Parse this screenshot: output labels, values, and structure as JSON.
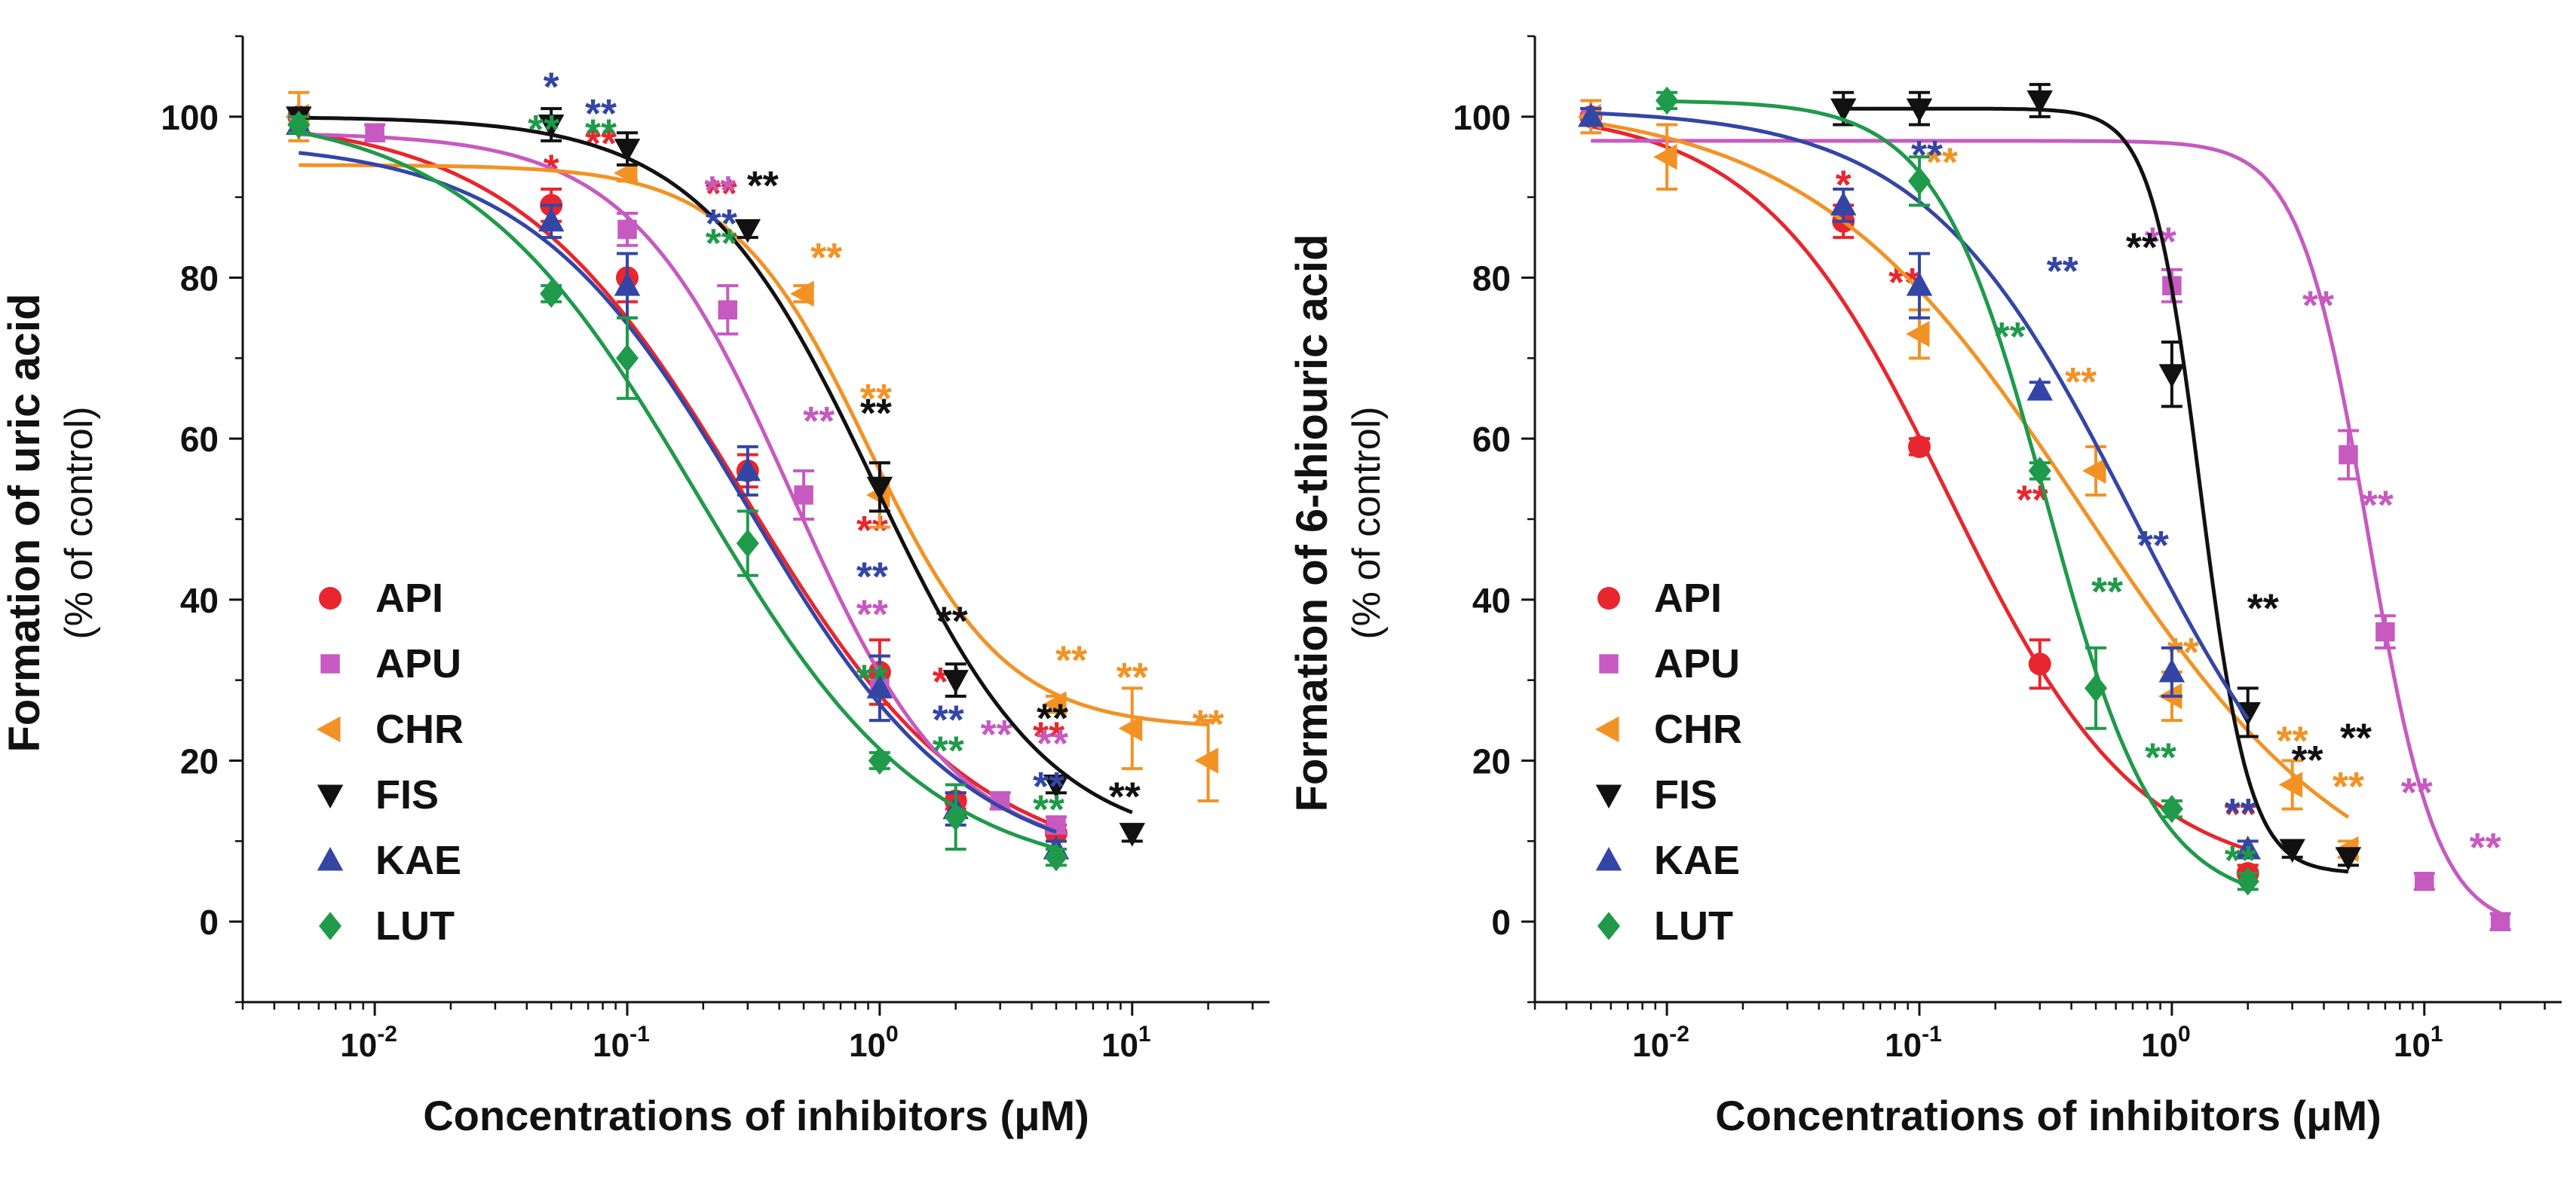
{
  "colors": {
    "API": "#e8262e",
    "APU": "#c65ac0",
    "CHR": "#f29225",
    "FIS": "#111111",
    "KAE": "#3346a6",
    "LUT": "#1f9a4a"
  },
  "chart_data": [
    {
      "type": "scatter",
      "xlabel": "Concentrations of inhibitors (μM)",
      "ylabel": "Formation of uric acid",
      "ylabel_sub": "(% of control)",
      "xscale": "log",
      "xlim": [
        0.003,
        35
      ],
      "ylim": [
        -10,
        110
      ],
      "yticks": [
        0,
        20,
        40,
        60,
        80,
        100
      ],
      "xticks": [
        {
          "value": 0.01,
          "base": "10",
          "exp": "-2"
        },
        {
          "value": 0.1,
          "base": "10",
          "exp": "-1"
        },
        {
          "value": 1,
          "base": "10",
          "exp": "0"
        },
        {
          "value": 10,
          "base": "10",
          "exp": "1"
        }
      ],
      "legend_position": "bottom-left",
      "series": [
        {
          "name": "API",
          "marker": "circle",
          "x": [
            0.005,
            0.05,
            0.1,
            0.3,
            1,
            2,
            5
          ],
          "y": [
            100,
            89,
            80,
            56,
            31,
            15,
            11
          ],
          "err": [
            0,
            2,
            3,
            2,
            4,
            1,
            1
          ],
          "curve": {
            "bottom": 6,
            "top": 100,
            "ic50": 0.29,
            "hill": 0.95
          },
          "sig": [
            "",
            "*",
            "**",
            "**",
            "**",
            "**",
            "**"
          ]
        },
        {
          "name": "APU",
          "marker": "square",
          "x": [
            0.005,
            0.01,
            0.1,
            0.25,
            0.5,
            1,
            3,
            5
          ],
          "y": [
            100,
            98,
            86,
            76,
            53,
            29,
            15,
            12
          ],
          "err": [
            1,
            1,
            2,
            3,
            3,
            4,
            1,
            1
          ],
          "curve": {
            "bottom": 8,
            "top": 98,
            "ic50": 0.45,
            "hill": 1.35
          },
          "sig": [
            "",
            "",
            "",
            "**",
            "**",
            "**",
            "**",
            "**"
          ]
        },
        {
          "name": "CHR",
          "marker": "tri-left",
          "x": [
            0.005,
            0.1,
            0.5,
            1,
            5,
            10,
            20
          ],
          "y": [
            100,
            93,
            78,
            53,
            27,
            24,
            20
          ],
          "err": [
            3,
            1,
            1,
            4,
            1,
            5,
            5
          ],
          "curve": {
            "bottom": 24,
            "top": 94,
            "ic50": 0.9,
            "hill": 1.6
          },
          "sig": [
            "",
            "",
            "**",
            "**",
            "**",
            "**",
            "**"
          ]
        },
        {
          "name": "FIS",
          "marker": "tri-down",
          "x": [
            0.005,
            0.05,
            0.1,
            0.3,
            1,
            2,
            5,
            10
          ],
          "y": [
            100,
            99,
            96,
            86,
            54,
            30,
            17,
            11
          ],
          "err": [
            1,
            2,
            2,
            1,
            3,
            2,
            1,
            1
          ],
          "curve": {
            "bottom": 9,
            "top": 100,
            "ic50": 0.95,
            "hill": 1.25
          },
          "sig": [
            "",
            "",
            "",
            "**",
            "**",
            "**",
            "**",
            "**"
          ]
        },
        {
          "name": "KAE",
          "marker": "tri-up",
          "x": [
            0.005,
            0.05,
            0.1,
            0.3,
            1,
            2,
            5
          ],
          "y": [
            99,
            87,
            79,
            56,
            29,
            14,
            9
          ],
          "err": [
            1,
            2,
            4,
            3,
            4,
            2,
            1
          ],
          "curve": {
            "bottom": 6,
            "top": 97,
            "ic50": 0.3,
            "hill": 1.0
          },
          "sig": [
            "",
            "*",
            "**",
            "**",
            "**",
            "**",
            "**"
          ]
        },
        {
          "name": "LUT",
          "marker": "diamond",
          "x": [
            0.005,
            0.05,
            0.1,
            0.3,
            1,
            2,
            5
          ],
          "y": [
            99,
            78,
            70,
            47,
            20,
            13,
            8
          ],
          "err": [
            1,
            1,
            5,
            4,
            1,
            4,
            1
          ],
          "curve": {
            "bottom": 5,
            "top": 101,
            "ic50": 0.19,
            "hill": 0.95
          },
          "sig": [
            "",
            "**",
            "**",
            "**",
            "**",
            "**",
            "**"
          ]
        }
      ]
    },
    {
      "type": "scatter",
      "xlabel": "Concentrations of inhibitors (μM)",
      "ylabel": "Formation of 6-thiouric acid",
      "ylabel_sub": "(% of control)",
      "xscale": "log",
      "xlim": [
        0.003,
        35
      ],
      "ylim": [
        -10,
        110
      ],
      "yticks": [
        0,
        20,
        40,
        60,
        80,
        100
      ],
      "xticks": [
        {
          "value": 0.01,
          "base": "10",
          "exp": "-2"
        },
        {
          "value": 0.1,
          "base": "10",
          "exp": "-1"
        },
        {
          "value": 1,
          "base": "10",
          "exp": "0"
        },
        {
          "value": 10,
          "base": "10",
          "exp": "1"
        }
      ],
      "legend_position": "bottom-left",
      "series": [
        {
          "name": "API",
          "marker": "circle",
          "x": [
            0.005,
            0.05,
            0.1,
            0.3,
            2
          ],
          "y": [
            100,
            87,
            59,
            32,
            6
          ],
          "err": [
            1,
            2,
            1,
            3,
            1
          ],
          "curve": {
            "bottom": 5,
            "top": 101,
            "ic50": 0.13,
            "hill": 1.15
          },
          "sig": [
            "",
            "*",
            "**",
            "**",
            "**"
          ]
        },
        {
          "name": "APU",
          "marker": "square",
          "x": [
            0.005,
            1,
            5,
            7,
            10,
            20
          ],
          "y": [
            100,
            79,
            58,
            36,
            5,
            0
          ],
          "err": [
            1,
            2,
            3,
            2,
            1,
            1
          ],
          "curve": {
            "bottom": -1,
            "top": 97,
            "ic50": 6.0,
            "hill": 3.2
          },
          "sig": [
            "",
            "**",
            "**",
            "**",
            "**",
            "**"
          ]
        },
        {
          "name": "CHR",
          "marker": "tri-left",
          "x": [
            0.005,
            0.01,
            0.1,
            0.5,
            1,
            3,
            5
          ],
          "y": [
            100,
            95,
            73,
            56,
            28,
            17,
            9
          ],
          "err": [
            2,
            4,
            3,
            3,
            3,
            3,
            1
          ],
          "curve": {
            "bottom": 0,
            "top": 102,
            "ic50": 0.45,
            "hill": 0.8
          },
          "sig": [
            "",
            "",
            "**",
            "**",
            "**",
            "**",
            "**"
          ]
        },
        {
          "name": "FIS",
          "marker": "tri-down",
          "x": [
            0.05,
            0.1,
            0.3,
            1,
            2,
            3,
            5
          ],
          "y": [
            101,
            101,
            102,
            68,
            26,
            9,
            8
          ],
          "err": [
            2,
            2,
            2,
            4,
            3,
            1,
            1
          ],
          "curve": {
            "bottom": 6,
            "top": 101,
            "ic50": 1.3,
            "hill": 4.5
          },
          "sig": [
            "",
            "",
            "",
            "**",
            "**",
            "**",
            "**"
          ]
        },
        {
          "name": "KAE",
          "marker": "tri-up",
          "x": [
            0.005,
            0.05,
            0.1,
            0.3,
            1,
            2
          ],
          "y": [
            100,
            89,
            79,
            66,
            31,
            9
          ],
          "err": [
            1,
            2,
            4,
            1,
            3,
            1
          ],
          "curve": {
            "bottom": 0,
            "top": 101,
            "ic50": 0.7,
            "hill": 1.05
          },
          "sig": [
            "",
            "",
            "**",
            "**",
            "**",
            "**"
          ]
        },
        {
          "name": "LUT",
          "marker": "diamond",
          "x": [
            0.01,
            0.1,
            0.3,
            0.5,
            1,
            2
          ],
          "y": [
            102,
            92,
            56,
            29,
            14,
            5
          ],
          "err": [
            1,
            3,
            1,
            5,
            1,
            1
          ],
          "curve": {
            "bottom": 2,
            "top": 102,
            "ic50": 0.32,
            "hill": 2.0
          },
          "sig": [
            "",
            "",
            "**",
            "**",
            "**",
            "**"
          ]
        }
      ]
    }
  ]
}
